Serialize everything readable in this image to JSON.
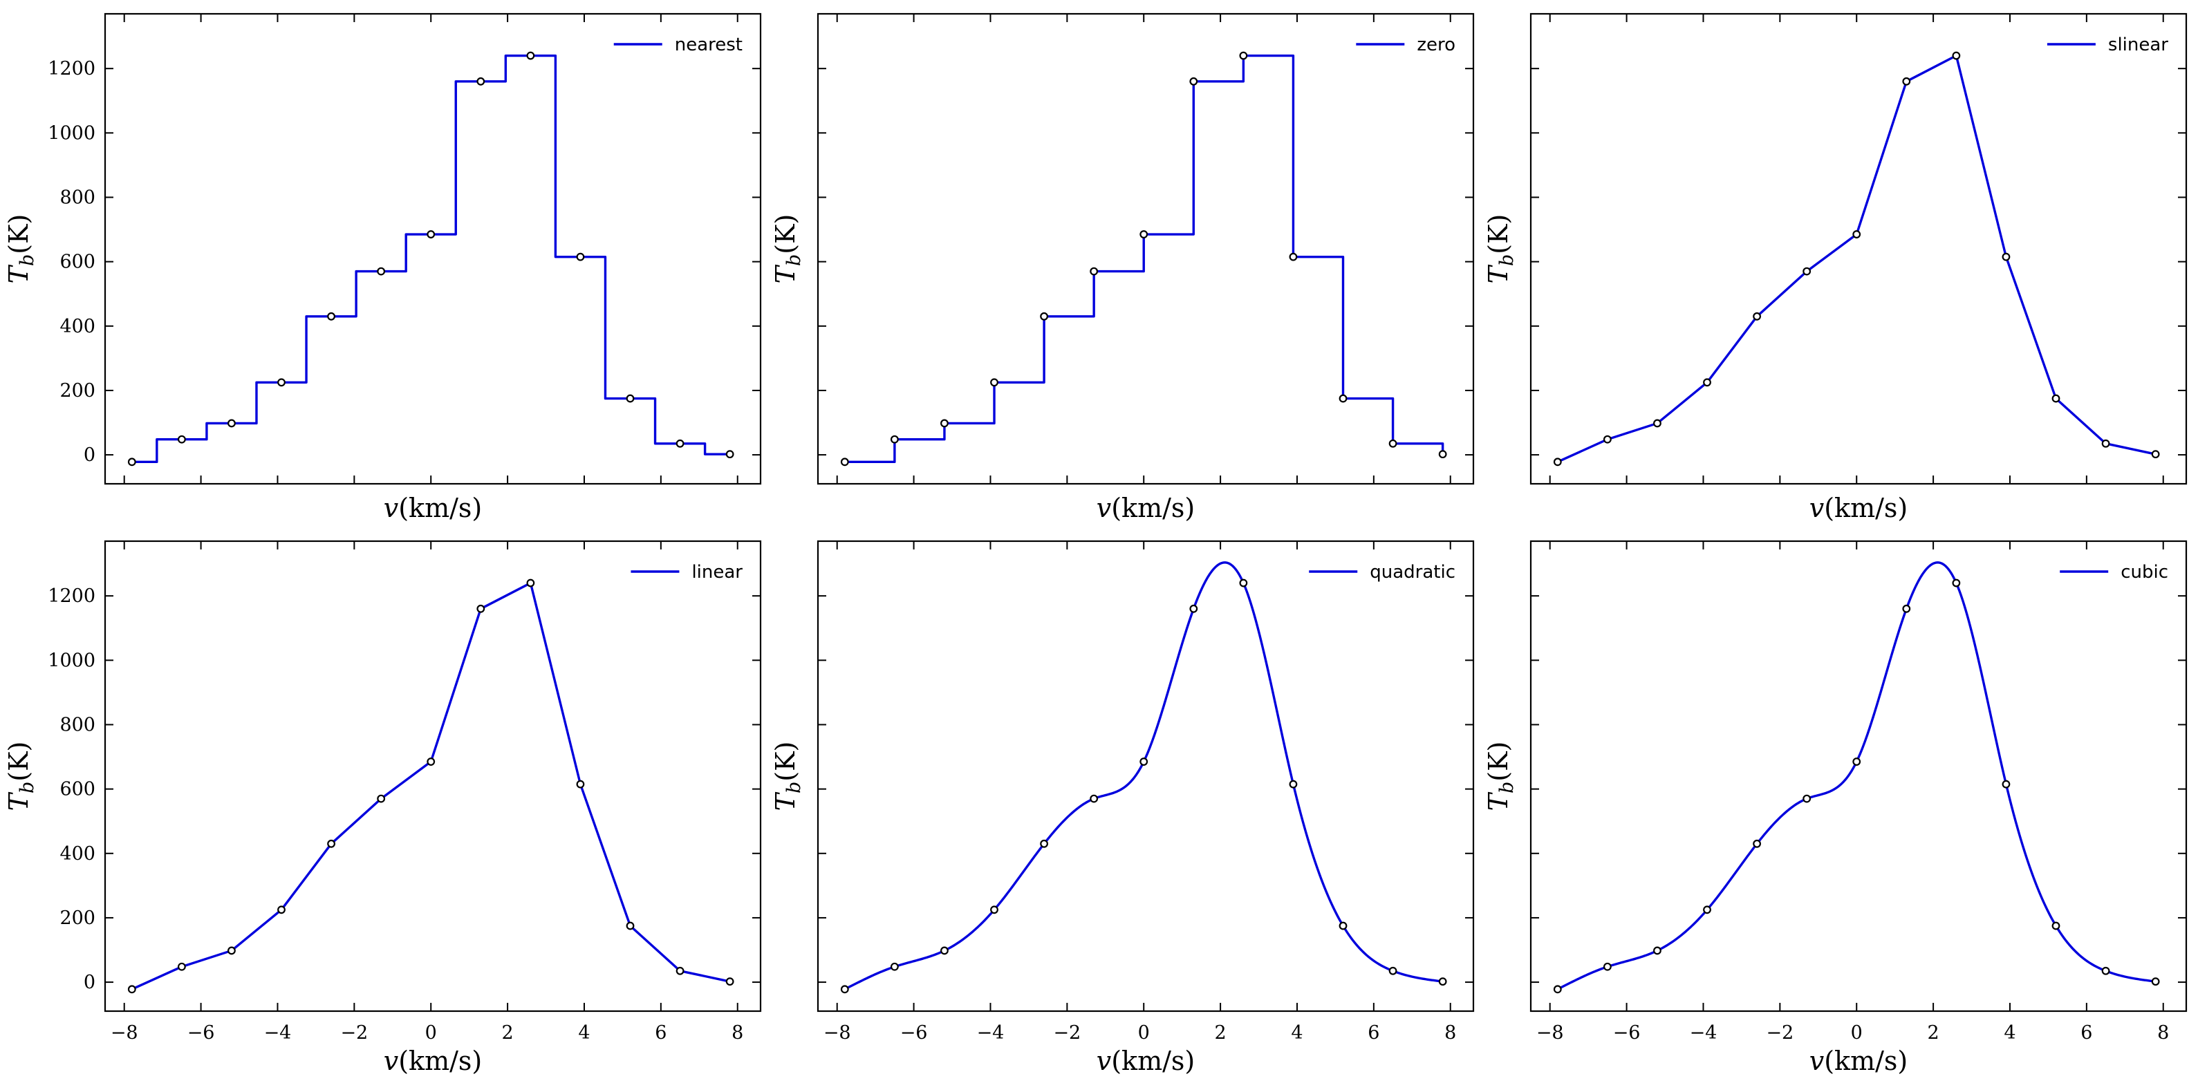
{
  "chart_data": [
    {
      "type": "line",
      "legend": "nearest",
      "kind": "nearest",
      "xlabel": "v(km/s)",
      "ylabel": "T_b(K)",
      "xlim": [
        -8.5,
        8.6
      ],
      "ylim": [
        -90,
        1370
      ],
      "xticks": [
        -8,
        -6,
        -4,
        -2,
        0,
        2,
        4,
        6,
        8
      ],
      "yticks": [
        0,
        200,
        400,
        600,
        800,
        1000,
        1200
      ],
      "show_xticklabels": false,
      "show_yticklabels": true,
      "points": {
        "x": [
          -7.8,
          -6.5,
          -5.2,
          -3.9,
          -2.6,
          -1.3,
          0.0,
          1.3,
          2.6,
          3.9,
          5.2,
          6.5,
          7.8
        ],
        "y": [
          -22,
          48,
          98,
          225,
          430,
          570,
          685,
          1160,
          1240,
          615,
          175,
          35,
          2
        ]
      }
    },
    {
      "type": "line",
      "legend": "zero",
      "kind": "zero",
      "xlabel": "v(km/s)",
      "ylabel": "T_b(K)",
      "xlim": [
        -8.5,
        8.6
      ],
      "ylim": [
        -90,
        1370
      ],
      "xticks": [
        -8,
        -6,
        -4,
        -2,
        0,
        2,
        4,
        6,
        8
      ],
      "yticks": [
        0,
        200,
        400,
        600,
        800,
        1000,
        1200
      ],
      "show_xticklabels": false,
      "show_yticklabels": false,
      "points": {
        "x": [
          -7.8,
          -6.5,
          -5.2,
          -3.9,
          -2.6,
          -1.3,
          0.0,
          1.3,
          2.6,
          3.9,
          5.2,
          6.5,
          7.8
        ],
        "y": [
          -22,
          48,
          98,
          225,
          430,
          570,
          685,
          1160,
          1240,
          615,
          175,
          35,
          2
        ]
      }
    },
    {
      "type": "line",
      "legend": "slinear",
      "kind": "linear",
      "xlabel": "v(km/s)",
      "ylabel": "T_b(K)",
      "xlim": [
        -8.5,
        8.6
      ],
      "ylim": [
        -90,
        1370
      ],
      "xticks": [
        -8,
        -6,
        -4,
        -2,
        0,
        2,
        4,
        6,
        8
      ],
      "yticks": [
        0,
        200,
        400,
        600,
        800,
        1000,
        1200
      ],
      "show_xticklabels": false,
      "show_yticklabels": false,
      "points": {
        "x": [
          -7.8,
          -6.5,
          -5.2,
          -3.9,
          -2.6,
          -1.3,
          0.0,
          1.3,
          2.6,
          3.9,
          5.2,
          6.5,
          7.8
        ],
        "y": [
          -22,
          48,
          98,
          225,
          430,
          570,
          685,
          1160,
          1240,
          615,
          175,
          35,
          2
        ]
      }
    },
    {
      "type": "line",
      "legend": "linear",
      "kind": "linear",
      "xlabel": "v(km/s)",
      "ylabel": "T_b(K)",
      "xlim": [
        -8.5,
        8.6
      ],
      "ylim": [
        -90,
        1370
      ],
      "xticks": [
        -8,
        -6,
        -4,
        -2,
        0,
        2,
        4,
        6,
        8
      ],
      "yticks": [
        0,
        200,
        400,
        600,
        800,
        1000,
        1200
      ],
      "show_xticklabels": true,
      "show_yticklabels": true,
      "points": {
        "x": [
          -7.8,
          -6.5,
          -5.2,
          -3.9,
          -2.6,
          -1.3,
          0.0,
          1.3,
          2.6,
          3.9,
          5.2,
          6.5,
          7.8
        ],
        "y": [
          -22,
          48,
          98,
          225,
          430,
          570,
          685,
          1160,
          1240,
          615,
          175,
          35,
          2
        ]
      }
    },
    {
      "type": "line",
      "legend": "quadratic",
      "kind": "smooth",
      "xlabel": "v(km/s)",
      "ylabel": "T_b(K)",
      "xlim": [
        -8.5,
        8.6
      ],
      "ylim": [
        -90,
        1370
      ],
      "xticks": [
        -8,
        -6,
        -4,
        -2,
        0,
        2,
        4,
        6,
        8
      ],
      "yticks": [
        0,
        200,
        400,
        600,
        800,
        1000,
        1200
      ],
      "show_xticklabels": true,
      "show_yticklabels": false,
      "points": {
        "x": [
          -7.8,
          -6.5,
          -5.2,
          -3.9,
          -2.6,
          -1.3,
          0.0,
          1.3,
          2.6,
          3.9,
          5.2,
          6.5,
          7.8
        ],
        "y": [
          -22,
          48,
          98,
          225,
          430,
          570,
          685,
          1160,
          1240,
          615,
          175,
          35,
          2
        ]
      }
    },
    {
      "type": "line",
      "legend": "cubic",
      "kind": "smooth",
      "xlabel": "v(km/s)",
      "ylabel": "T_b(K)",
      "xlim": [
        -8.5,
        8.6
      ],
      "ylim": [
        -90,
        1370
      ],
      "xticks": [
        -8,
        -6,
        -4,
        -2,
        0,
        2,
        4,
        6,
        8
      ],
      "yticks": [
        0,
        200,
        400,
        600,
        800,
        1000,
        1200
      ],
      "show_xticklabels": true,
      "show_yticklabels": false,
      "points": {
        "x": [
          -7.8,
          -6.5,
          -5.2,
          -3.9,
          -2.6,
          -1.3,
          0.0,
          1.3,
          2.6,
          3.9,
          5.2,
          6.5,
          7.8
        ],
        "y": [
          -22,
          48,
          98,
          225,
          430,
          570,
          685,
          1160,
          1240,
          615,
          175,
          35,
          2
        ]
      }
    }
  ],
  "colors": {
    "curve": "#0000dd",
    "marker_fill": "#ffffff",
    "marker_edge": "#000000",
    "axes": "#000000"
  }
}
